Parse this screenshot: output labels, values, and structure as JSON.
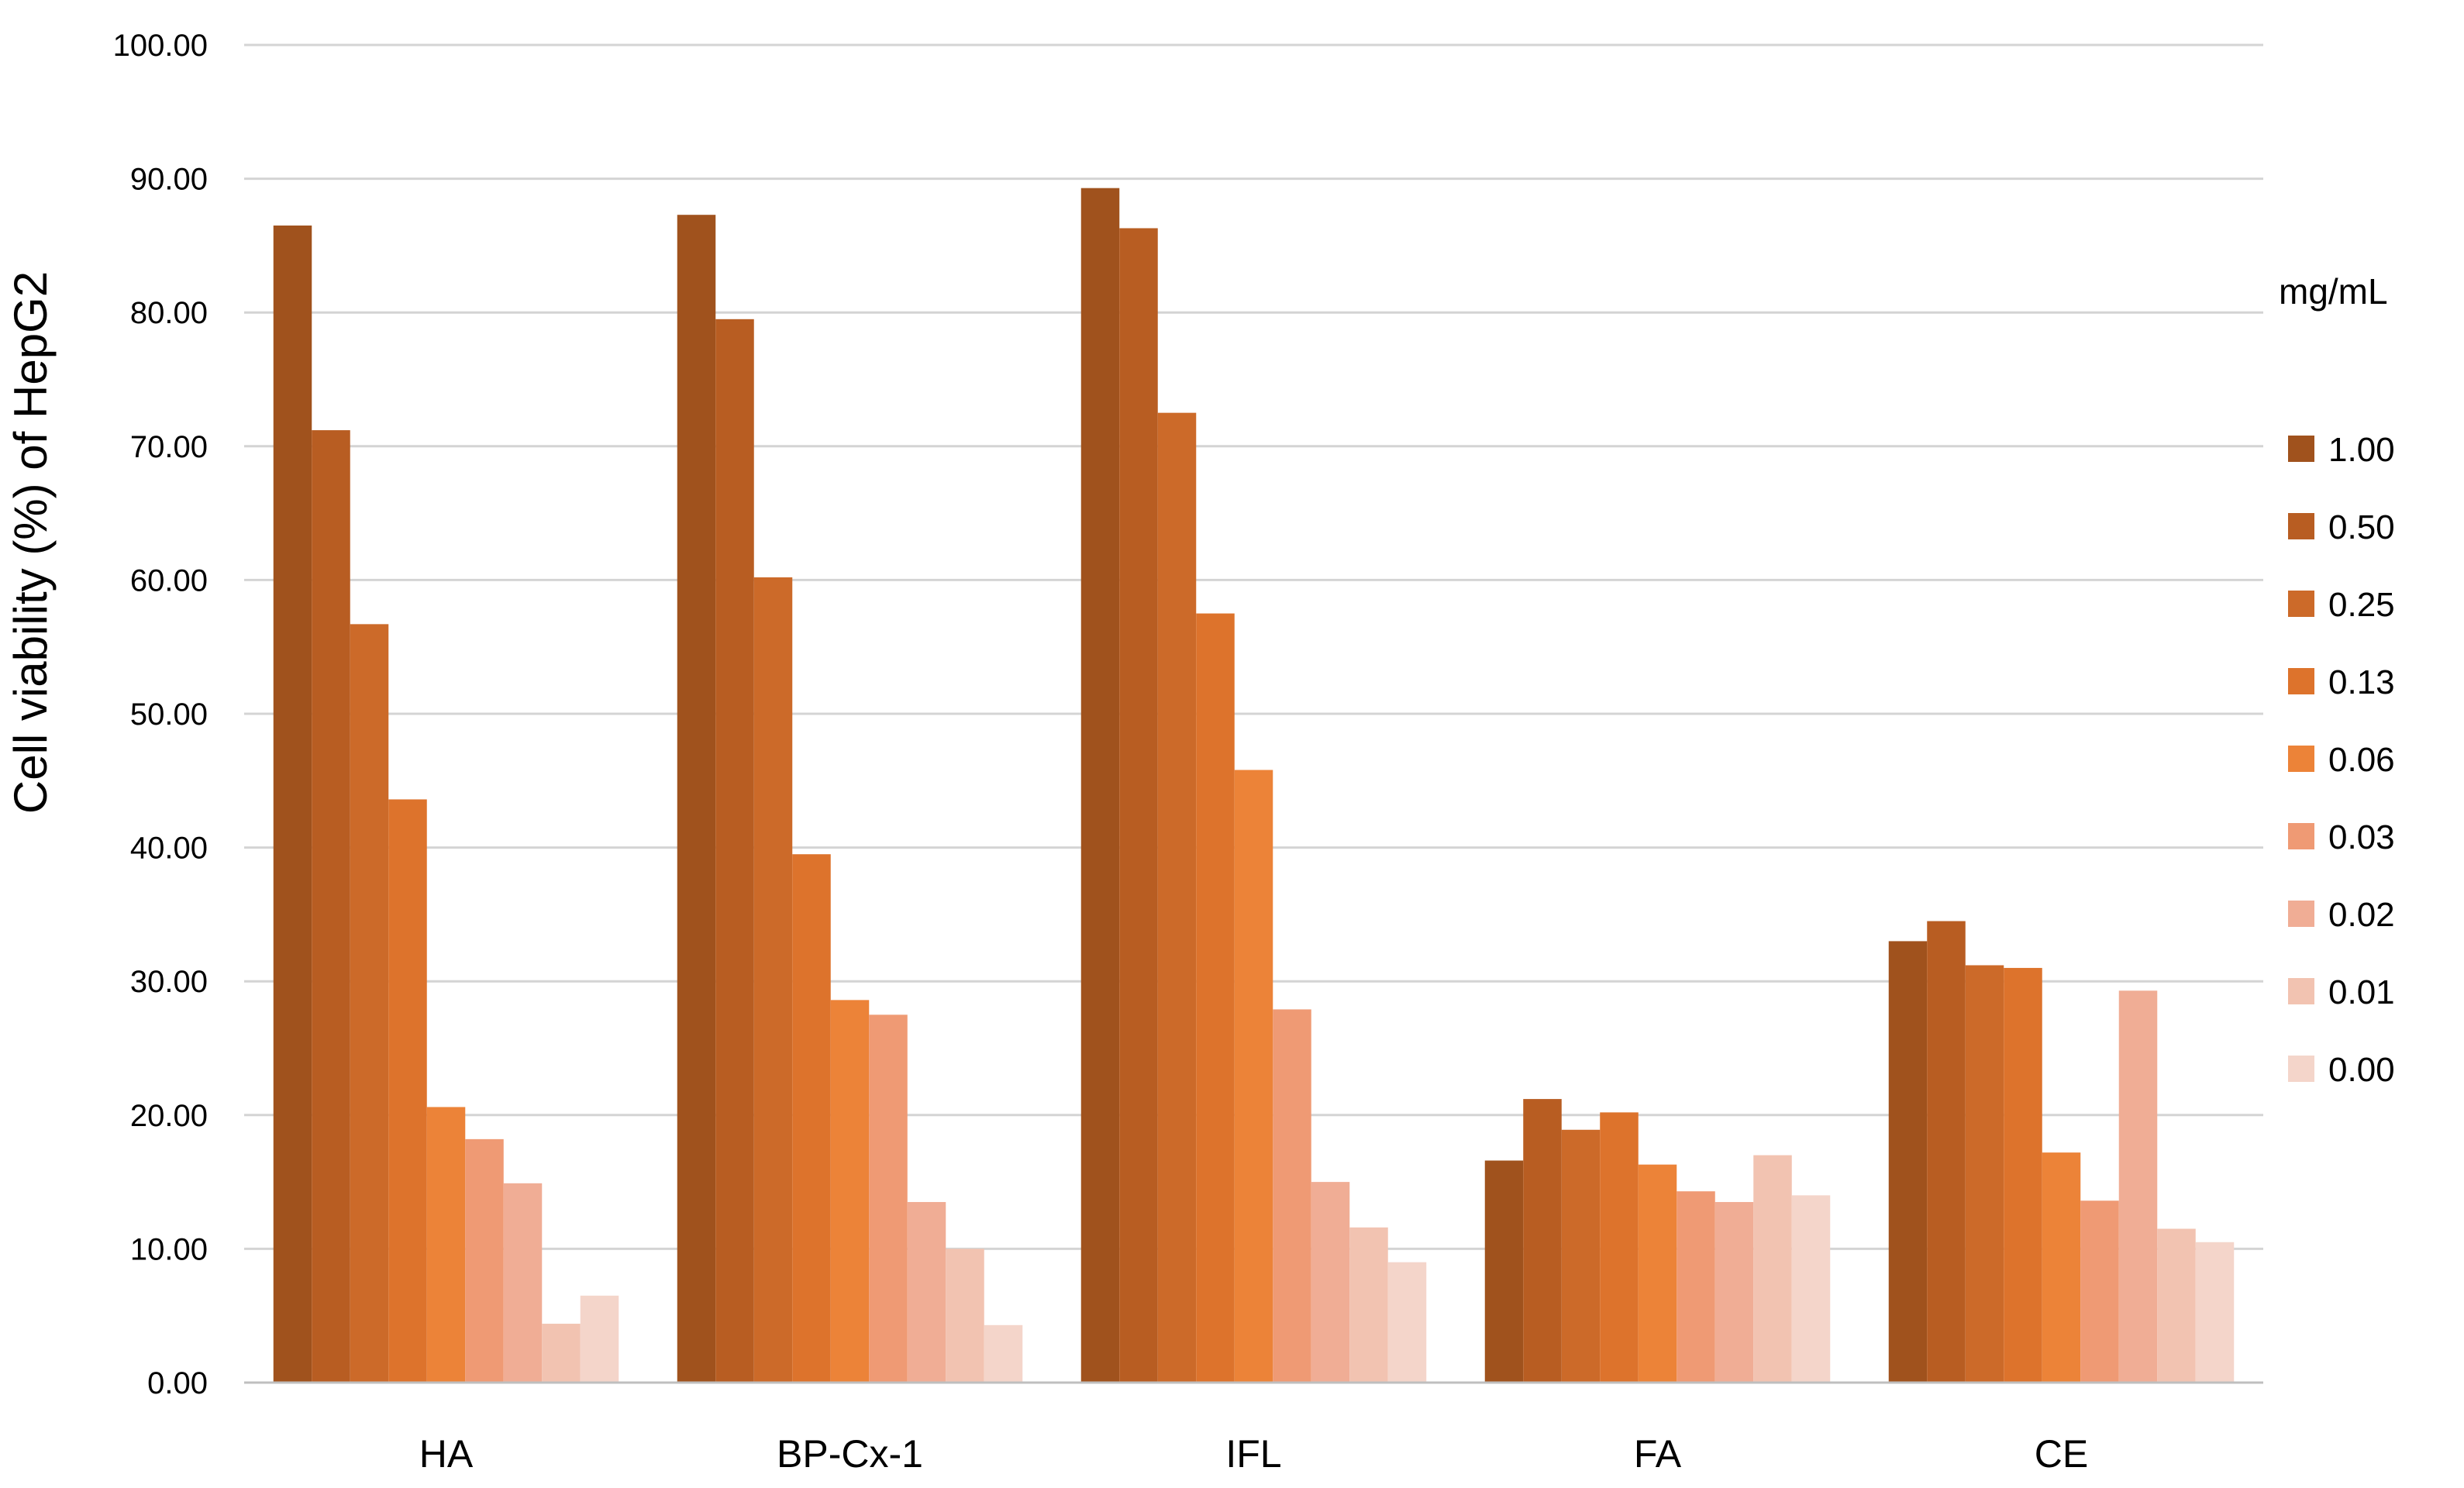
{
  "chart_data": {
    "type": "bar",
    "title": "",
    "xlabel": "",
    "ylabel": "Cell viability (%) of HepG2",
    "ylim": [
      0,
      100
    ],
    "yticks": [
      "0.00",
      "10.00",
      "20.00",
      "30.00",
      "40.00",
      "50.00",
      "60.00",
      "70.00",
      "80.00",
      "90.00",
      "100.00"
    ],
    "grid": true,
    "legend_title": "mg/mL",
    "legend_position": "right",
    "categories": [
      "HA",
      "BP-Cx-1",
      "IFL",
      "FA",
      "CE"
    ],
    "series": [
      {
        "name": "1.00",
        "color": "#a0521d",
        "values": [
          86.5,
          87.3,
          89.3,
          16.6,
          33.0
        ]
      },
      {
        "name": "0.50",
        "color": "#b85d22",
        "values": [
          71.2,
          79.5,
          86.3,
          21.2,
          34.5
        ]
      },
      {
        "name": "0.25",
        "color": "#cc6a29",
        "values": [
          56.7,
          60.2,
          72.5,
          18.9,
          31.2
        ]
      },
      {
        "name": "0.13",
        "color": "#dd732c",
        "values": [
          43.6,
          39.5,
          57.5,
          20.2,
          31.0
        ]
      },
      {
        "name": "0.06",
        "color": "#ec8338",
        "values": [
          20.6,
          28.6,
          45.8,
          16.3,
          17.2
        ]
      },
      {
        "name": "0.03",
        "color": "#ef9a74",
        "values": [
          18.2,
          27.5,
          27.9,
          14.3,
          13.6
        ]
      },
      {
        "name": "0.02",
        "color": "#f0ad95",
        "values": [
          14.9,
          13.5,
          15.0,
          13.5,
          29.3
        ]
      },
      {
        "name": "0.01",
        "color": "#f2c3b1",
        "values": [
          4.4,
          10.0,
          11.6,
          17.0,
          11.5
        ]
      },
      {
        "name": "0.00",
        "color": "#f4d5ca",
        "values": [
          6.5,
          4.3,
          9.0,
          14.0,
          10.5
        ]
      }
    ]
  }
}
